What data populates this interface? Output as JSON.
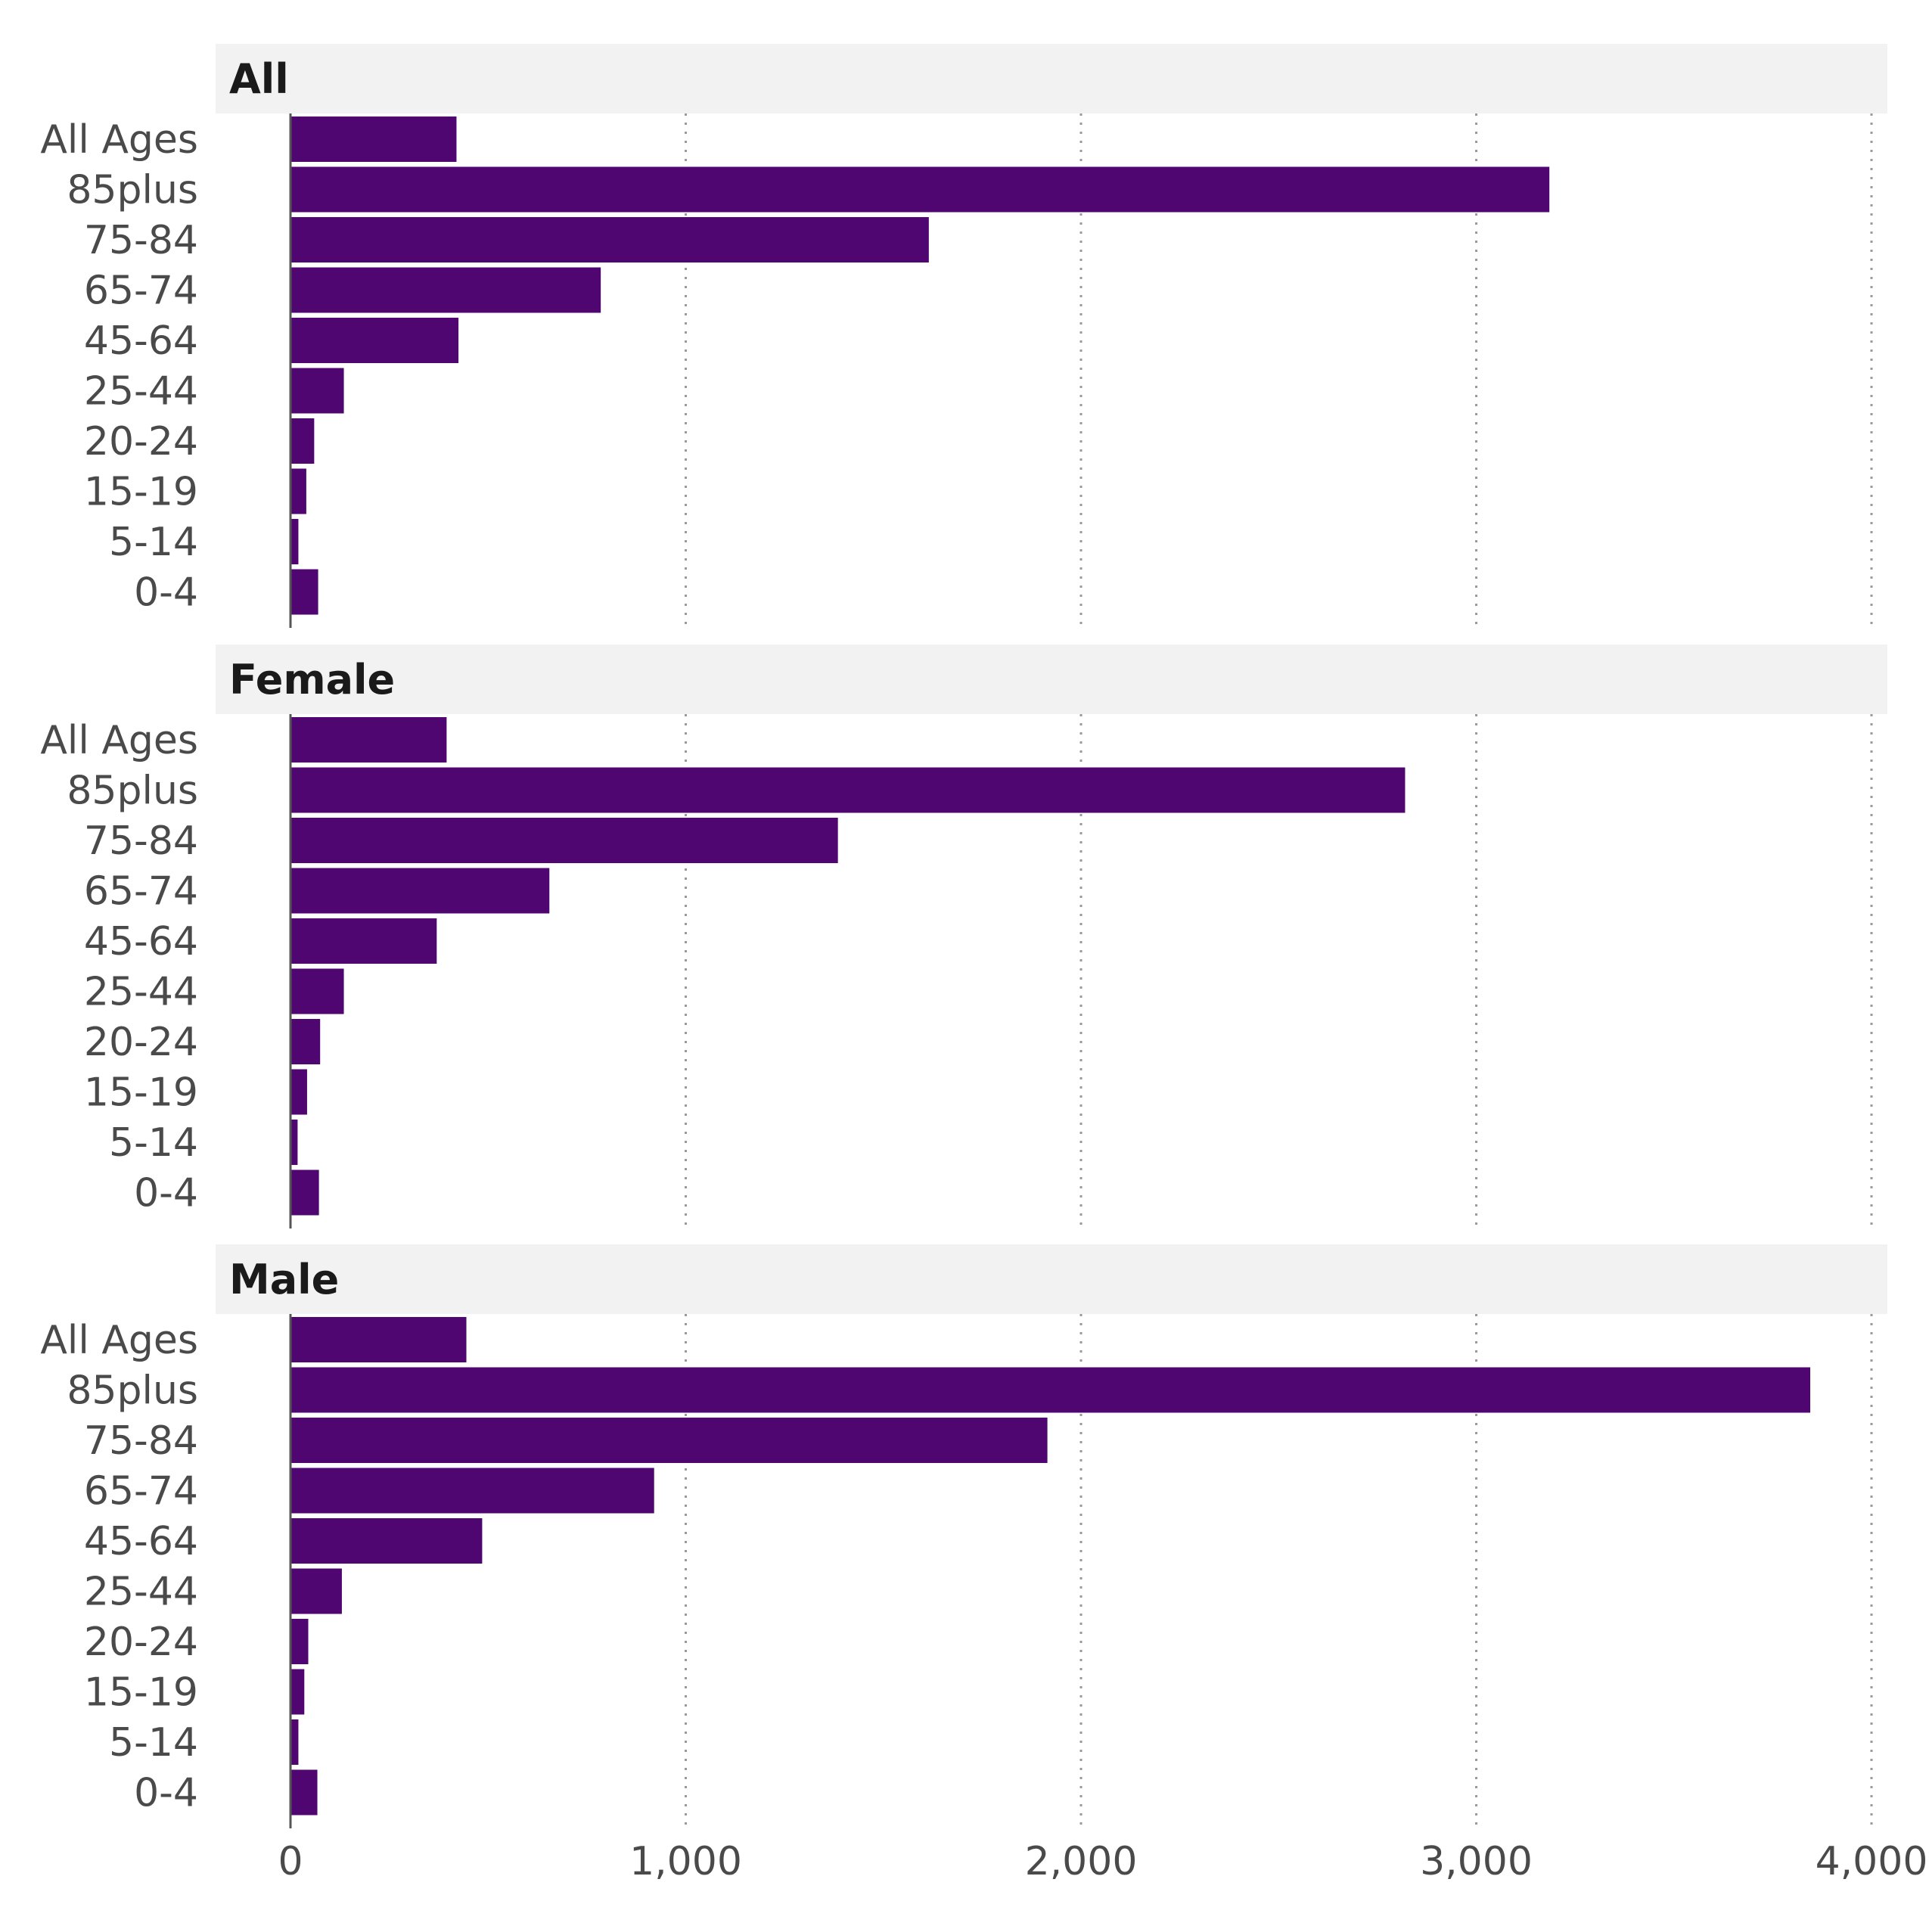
{
  "chart_data": {
    "type": "bar",
    "orientation": "horizontal",
    "categories": [
      "All Ages",
      "85plus",
      "75-84",
      "65-74",
      "45-64",
      "25-44",
      "20-24",
      "15-19",
      "5-14",
      "0-4"
    ],
    "xlim": [
      0,
      4000
    ],
    "xticks": [
      0,
      1000,
      2000,
      3000,
      4000
    ],
    "xtick_labels": [
      "0",
      "1,000",
      "2,000",
      "3,000",
      "4,000"
    ],
    "grid": "vertical-dotted",
    "bar_color": "#4f0670",
    "panels": [
      {
        "title": "All",
        "values": [
          420,
          3185,
          1615,
          785,
          425,
          135,
          60,
          40,
          20,
          70
        ]
      },
      {
        "title": "Female",
        "values": [
          395,
          2820,
          1385,
          655,
          370,
          135,
          75,
          42,
          18,
          72
        ]
      },
      {
        "title": "Male",
        "values": [
          445,
          3845,
          1915,
          920,
          485,
          130,
          45,
          35,
          20,
          68
        ]
      }
    ]
  }
}
